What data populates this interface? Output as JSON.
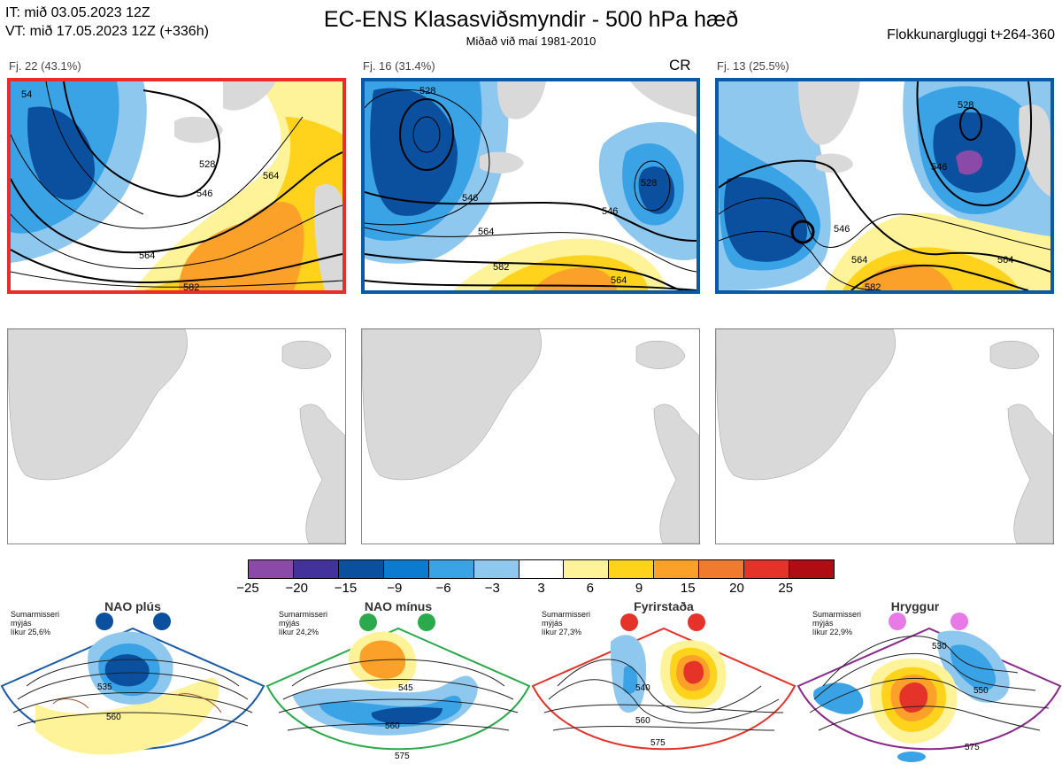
{
  "header": {
    "it_line": "IT: mið 03.05.2023 12Z",
    "vt_line": "VT: mið 17.05.2023 12Z  (+336h)",
    "title": "EC-ENS Klasasviðsmyndir - 500 hPa hæð",
    "subtitle": "Miðað við maí 1981-2010",
    "window": "Flokkunargluggi t+264-360"
  },
  "clusters": [
    {
      "label": "Fj. 22 (43.1%)",
      "border_color": "#ee2a2a",
      "badge": "",
      "contours": [
        "528",
        "546",
        "564",
        "564",
        "582",
        "54"
      ]
    },
    {
      "label": "Fj. 16 (31.4%)",
      "border_color": "#0a5aa8",
      "badge": "CR",
      "contours": [
        "528",
        "546",
        "564",
        "582",
        "564",
        "546",
        "528"
      ]
    },
    {
      "label": "Fj. 13 (25.5%)",
      "border_color": "#0a5aa8",
      "badge": "",
      "contours": [
        "528",
        "546",
        "546",
        "564",
        "564",
        "582"
      ]
    }
  ],
  "colorbar": {
    "colors": [
      "#8b4aa8",
      "#43319c",
      "#0b4f9f",
      "#0a7bd0",
      "#3aa3e6",
      "#8fc8ef",
      "#ffffff",
      "#fff39a",
      "#ffd21c",
      "#fba12a",
      "#f07a2e",
      "#e5332a",
      "#b00c14"
    ],
    "ticks": [
      "−25",
      "−20",
      "−15",
      "−9",
      "−6",
      "−3",
      "3",
      "6",
      "9",
      "15",
      "20",
      "25"
    ]
  },
  "regimes": [
    {
      "name": "NAO plús",
      "season": "Sumarmisseri",
      "smoothing": "mýjás",
      "prob": "líkur 25,6%",
      "color": "#0b4f9f",
      "frame_color": "#1a5ca8",
      "contours": [
        "535",
        "560"
      ]
    },
    {
      "name": "NAO mínus",
      "season": "Sumarmisseri",
      "smoothing": "mýjás",
      "prob": "líkur 24,2%",
      "color": "#2aaa4a",
      "frame_color": "#2aaa4a",
      "contours": [
        "545",
        "560",
        "575"
      ]
    },
    {
      "name": "Fyrirstaða",
      "season": "Sumarmisseri",
      "smoothing": "mýjás",
      "prob": "líkur 27,3%",
      "color": "#e5332a",
      "frame_color": "#e5332a",
      "contours": [
        "540",
        "560",
        "575"
      ]
    },
    {
      "name": "Hryggur",
      "season": "Sumarmisseri",
      "smoothing": "mýjás",
      "prob": "líkur 22,9%",
      "color": "#e87ae8",
      "frame_color": "#8a2a8a",
      "contours": [
        "530",
        "550",
        "575"
      ]
    }
  ]
}
